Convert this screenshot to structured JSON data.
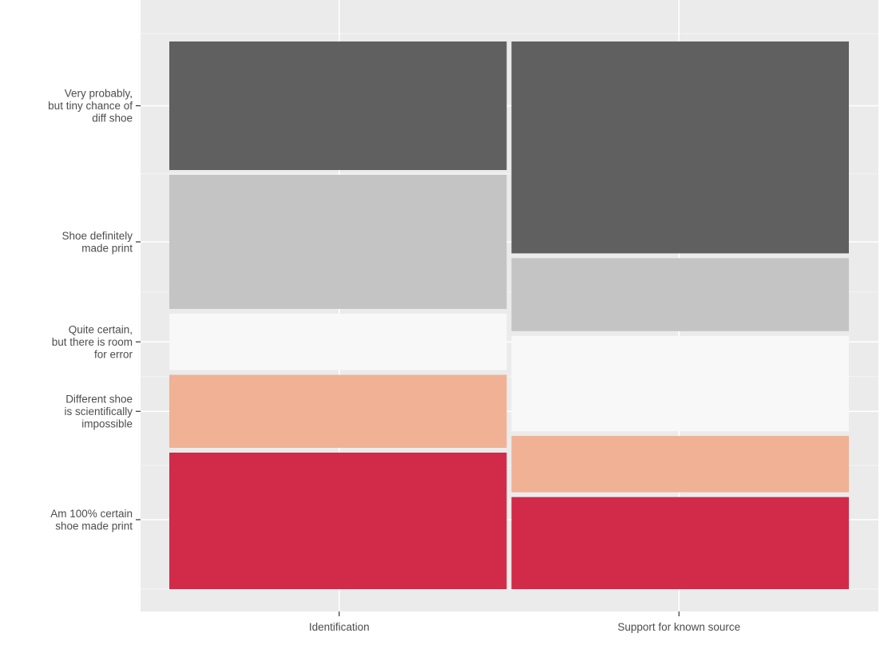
{
  "chart_data": {
    "type": "bar",
    "subtype": "mosaic",
    "categories": [
      "Identification",
      "Support for known source"
    ],
    "category_widths": [
      0.5,
      0.5
    ],
    "levels": [
      "Am 100% certain shoe made print",
      "Different shoe is scientifically impossible",
      "Quite certain, but there is room for error",
      "Shoe definitely made print",
      "Very probably, but tiny chance of diff shoe"
    ],
    "level_labels": [
      [
        "Am 100% certain",
        "shoe made print"
      ],
      [
        "Different shoe",
        "is scientifically",
        "impossible"
      ],
      [
        "Quite certain,",
        "but there is room",
        "for error"
      ],
      [
        "Shoe definitely",
        "made print"
      ],
      [
        "Very probably,",
        "but tiny chance of",
        "diff shoe"
      ]
    ],
    "colors": [
      "#d12b49",
      "#f0b194",
      "#f8f8f8",
      "#c4c4c4",
      "#606060"
    ],
    "series": [
      {
        "category": "Identification",
        "proportions": [
          0.25,
          0.14,
          0.11,
          0.25,
          0.24
        ]
      },
      {
        "category": "Support for known source",
        "proportions": [
          0.17,
          0.11,
          0.18,
          0.14,
          0.39
        ]
      }
    ],
    "xlabel": "",
    "ylabel": "",
    "grid": true
  }
}
